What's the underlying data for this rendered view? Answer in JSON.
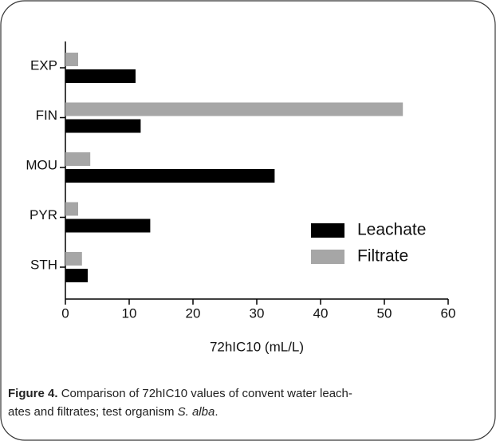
{
  "chart_data": {
    "type": "hbar",
    "categories": [
      "EXP",
      "FIN",
      "MOU",
      "PYR",
      "STH"
    ],
    "series": [
      {
        "name": "Leachate",
        "color": "#000000",
        "values": [
          11,
          11.8,
          32.8,
          13.3,
          3.5
        ]
      },
      {
        "name": "Filtrate",
        "color": "#a6a6a6",
        "values": [
          2,
          52.9,
          3.9,
          2,
          2.6
        ]
      }
    ],
    "xlabel": "72hIC10 (mL/L)",
    "xlim": [
      0,
      60
    ],
    "xticks": [
      0,
      10,
      20,
      30,
      40,
      50,
      60
    ],
    "legend": "right"
  },
  "caption": {
    "label": "Figure 4.",
    "line1": "Comparison of 72hIC10 values of convent water leach-",
    "line2": "ates and filtrates; test organism ",
    "organism": "S. alba",
    "end": "."
  }
}
